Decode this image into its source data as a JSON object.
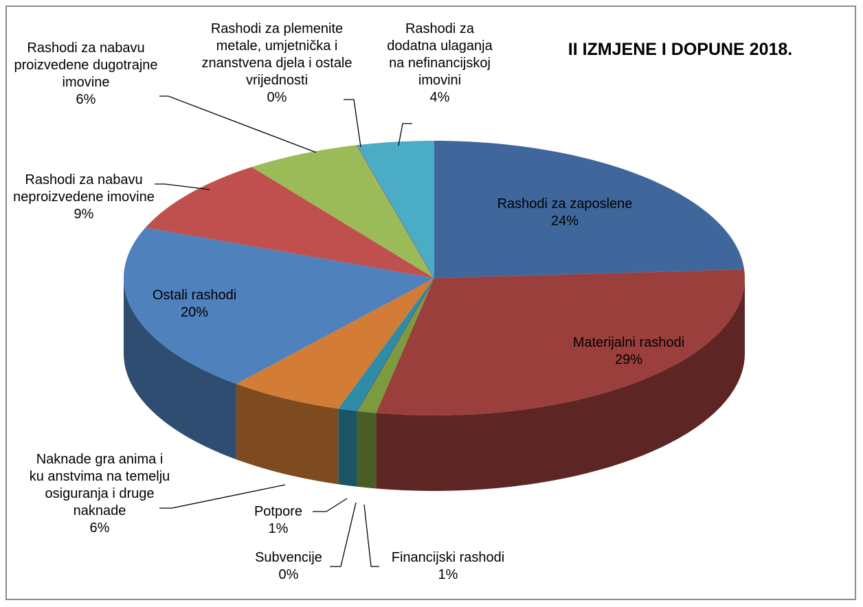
{
  "chart_data": {
    "type": "pie3d",
    "title": "II IZMJENE I DOPUNE 2018.",
    "categories": [
      "Rashodi za zaposlene",
      "Materijalni rashodi",
      "Financijski rashodi",
      "Subvencije",
      "Potpore",
      "Naknade gra anima i ku anstvima na temelju osiguranja i druge naknade",
      "Ostali rashodi",
      "Rashodi za nabavu neproizvedene imovine",
      "Rashodi za nabavu proizvedene dugotrajne imovine",
      "Rashodi za plemenite metale, umjetnička i znanstvena djela i ostale vrijednosti",
      "Rashodi za dodatna ulaganja na nefinancijskoj imovini"
    ],
    "values": [
      24,
      29,
      1,
      0,
      1,
      6,
      20,
      9,
      6,
      0,
      4
    ],
    "value_labels": [
      "24%",
      "29%",
      "1%",
      "0%",
      "1%",
      "6%",
      "20%",
      "9%",
      "6%",
      "0%",
      "4%"
    ],
    "colors": [
      "#3f679c",
      "#9b3f3d",
      "#7c9b3f",
      "#6a4a8a",
      "#2f8ca7",
      "#d27c36",
      "#4f81bd",
      "#c0504d",
      "#9bbb59",
      "#8064a2",
      "#4bacc6"
    ]
  }
}
